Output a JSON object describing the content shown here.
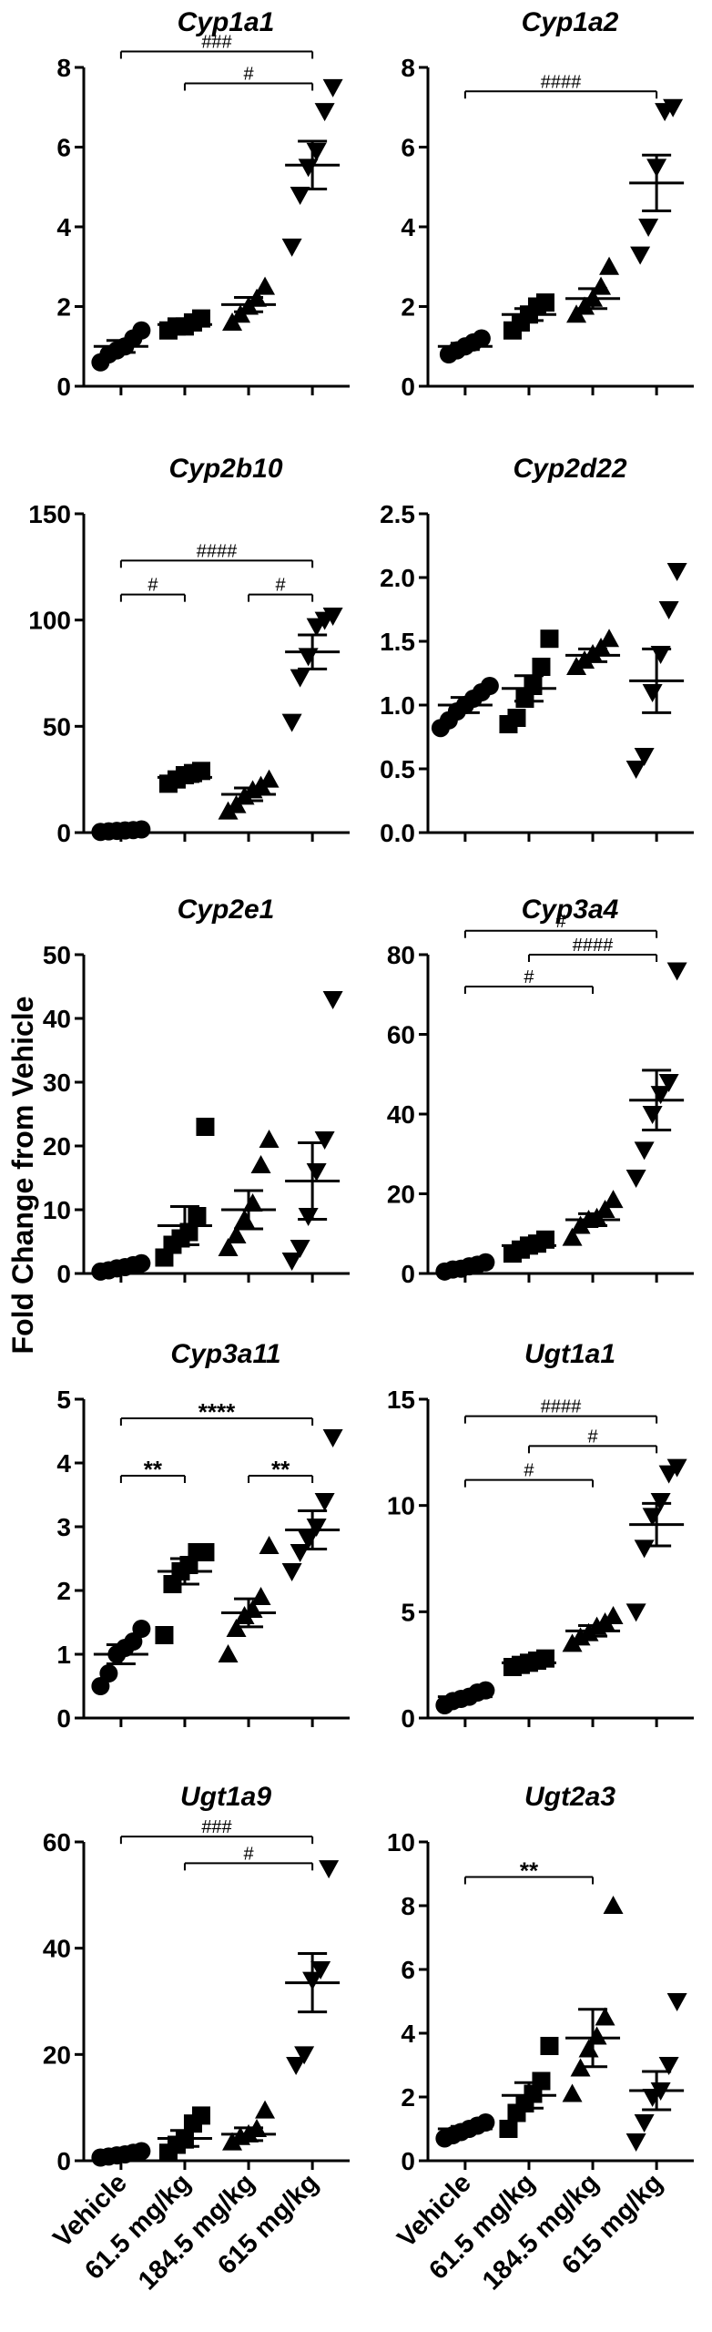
{
  "figure": {
    "y_axis_label": "Fold  Change from  Vehicle",
    "groups": [
      "Vehicle",
      "61.5 mg/kg",
      "184.5 mg/kg",
      "615 mg/kg"
    ],
    "marker_shapes": [
      "circle",
      "square",
      "triangle-up",
      "triangle-down"
    ]
  },
  "chart_data": [
    {
      "type": "scatter",
      "title": "Cyp1a1",
      "ylim": [
        0,
        8
      ],
      "yticks": [
        0,
        2,
        4,
        6,
        8
      ],
      "tick_labels": [
        "0",
        "2",
        "4",
        "6",
        "8"
      ],
      "points": [
        [
          0.6,
          0.8,
          0.9,
          1.0,
          1.2,
          1.4
        ],
        [
          1.4,
          1.5,
          1.5,
          1.6,
          1.7
        ],
        [
          1.6,
          1.8,
          2.0,
          2.2,
          2.5
        ],
        [
          3.5,
          4.8,
          5.5,
          5.9,
          6.9,
          7.5
        ]
      ],
      "means": [
        1.0,
        1.55,
        2.05,
        5.55
      ],
      "errors": [
        0.15,
        0.07,
        0.18,
        0.6
      ],
      "sig": [
        {
          "from": 0,
          "to": 3,
          "label": "###",
          "y": 8.4
        },
        {
          "from": 1,
          "to": 3,
          "label": "#",
          "y": 7.6
        }
      ]
    },
    {
      "type": "scatter",
      "title": "Cyp1a2",
      "ylim": [
        0,
        8
      ],
      "yticks": [
        0,
        2,
        4,
        6,
        8
      ],
      "tick_labels": [
        "0",
        "2",
        "4",
        "6",
        "8"
      ],
      "points": [
        [
          0.8,
          0.9,
          1.0,
          1.1,
          1.2
        ],
        [
          1.4,
          1.6,
          1.8,
          2.0,
          2.1
        ],
        [
          1.8,
          2.0,
          2.2,
          2.5,
          3.0
        ],
        [
          3.3,
          4.0,
          5.5,
          6.9,
          7.0
        ]
      ],
      "means": [
        1.0,
        1.8,
        2.2,
        5.1
      ],
      "errors": [
        0.08,
        0.15,
        0.25,
        0.7
      ],
      "sig": [
        {
          "from": 0,
          "to": 3,
          "label": "####",
          "y": 7.4
        }
      ]
    },
    {
      "type": "scatter",
      "title": "Cyp2b10",
      "ylim": [
        0,
        150
      ],
      "yticks": [
        0,
        50,
        100,
        150
      ],
      "tick_labels": [
        "0",
        "50",
        "100",
        "150"
      ],
      "points": [
        [
          0.3,
          0.6,
          0.8,
          1.0,
          1.2,
          1.5
        ],
        [
          23,
          25,
          27,
          28,
          29
        ],
        [
          10,
          13,
          17,
          20,
          22,
          25
        ],
        [
          52,
          73,
          83,
          97,
          100,
          102
        ]
      ],
      "means": [
        1.0,
        26,
        18,
        85
      ],
      "errors": [
        0.3,
        2,
        3,
        8
      ],
      "sig": [
        {
          "from": 0,
          "to": 3,
          "label": "####",
          "y": 128
        },
        {
          "from": 0,
          "to": 1,
          "label": "#",
          "y": 112
        },
        {
          "from": 2,
          "to": 3,
          "label": "#",
          "y": 112
        }
      ]
    },
    {
      "type": "scatter",
      "title": "Cyp2d22",
      "ylim": [
        0,
        2.5
      ],
      "yticks": [
        0,
        0.5,
        1.0,
        1.5,
        2.0,
        2.5
      ],
      "tick_labels": [
        "0.0",
        "0.5",
        "1.0",
        "1.5",
        "2.0",
        "2.5"
      ],
      "points": [
        [
          0.82,
          0.88,
          0.95,
          1.0,
          1.05,
          1.1,
          1.15
        ],
        [
          0.85,
          0.9,
          1.05,
          1.15,
          1.3,
          1.52
        ],
        [
          1.3,
          1.35,
          1.4,
          1.45,
          1.52
        ],
        [
          0.5,
          0.6,
          1.1,
          1.4,
          1.75,
          2.05
        ]
      ],
      "means": [
        1.0,
        1.13,
        1.39,
        1.19
      ],
      "errors": [
        0.06,
        0.1,
        0.05,
        0.25
      ],
      "sig": []
    },
    {
      "type": "scatter",
      "title": "Cyp2e1",
      "ylim": [
        0,
        50
      ],
      "yticks": [
        0,
        10,
        20,
        30,
        40,
        50
      ],
      "tick_labels": [
        "0",
        "10",
        "20",
        "30",
        "40",
        "50"
      ],
      "points": [
        [
          0.3,
          0.5,
          0.8,
          1.0,
          1.3,
          1.6
        ],
        [
          2.5,
          4.5,
          5.5,
          6.5,
          9.0,
          23.0
        ],
        [
          4.0,
          6.0,
          8.5,
          11,
          17,
          21
        ],
        [
          2,
          4,
          9,
          16,
          21,
          43
        ]
      ],
      "means": [
        1.0,
        7.5,
        10,
        14.5
      ],
      "errors": [
        0.3,
        3,
        3,
        6
      ],
      "sig": []
    },
    {
      "type": "scatter",
      "title": "Cyp3a4",
      "ylim": [
        0,
        80
      ],
      "yticks": [
        0,
        20,
        40,
        60,
        80
      ],
      "tick_labels": [
        "0",
        "20",
        "40",
        "60",
        "80"
      ],
      "points": [
        [
          0.5,
          1.0,
          1.2,
          1.8,
          2.2,
          2.8
        ],
        [
          5,
          6,
          7,
          7.5,
          8.5
        ],
        [
          9,
          12,
          13.5,
          14,
          16,
          18.5
        ],
        [
          24,
          31,
          40,
          45,
          48,
          76
        ]
      ],
      "means": [
        1.5,
        7,
        13.5,
        43.5
      ],
      "errors": [
        0.4,
        0.6,
        1.5,
        7.5
      ],
      "sig": [
        {
          "from": 0,
          "to": 3,
          "label": "#",
          "y": 86
        },
        {
          "from": 1,
          "to": 3,
          "label": "####",
          "y": 80
        },
        {
          "from": 0,
          "to": 2,
          "label": "#",
          "y": 72
        }
      ]
    },
    {
      "type": "scatter",
      "title": "Cyp3a11",
      "ylim": [
        0,
        5
      ],
      "yticks": [
        0,
        1,
        2,
        3,
        4,
        5
      ],
      "tick_labels": [
        "0",
        "1",
        "2",
        "3",
        "4",
        "5"
      ],
      "points": [
        [
          0.5,
          0.7,
          1.0,
          1.1,
          1.2,
          1.4
        ],
        [
          1.3,
          2.1,
          2.3,
          2.4,
          2.6,
          2.6
        ],
        [
          1.0,
          1.4,
          1.6,
          1.7,
          1.9,
          2.7
        ],
        [
          2.3,
          2.6,
          2.8,
          3.0,
          3.4,
          4.4
        ]
      ],
      "means": [
        1.0,
        2.3,
        1.65,
        2.95
      ],
      "errors": [
        0.15,
        0.2,
        0.22,
        0.3
      ],
      "sig": [
        {
          "from": 0,
          "to": 3,
          "label": "****",
          "y": 4.7
        },
        {
          "from": 0,
          "to": 1,
          "label": "**",
          "y": 3.8
        },
        {
          "from": 2,
          "to": 3,
          "label": "**",
          "y": 3.8
        }
      ]
    },
    {
      "type": "scatter",
      "title": "Ugt1a1",
      "ylim": [
        0,
        15
      ],
      "yticks": [
        0,
        5,
        10,
        15
      ],
      "tick_labels": [
        "0",
        "5",
        "10",
        "15"
      ],
      "points": [
        [
          0.6,
          0.8,
          0.9,
          1.0,
          1.2,
          1.3
        ],
        [
          2.4,
          2.5,
          2.6,
          2.7,
          2.8
        ],
        [
          3.5,
          3.8,
          4.0,
          4.3,
          4.5,
          4.8
        ],
        [
          5.0,
          8.0,
          9.5,
          10.2,
          11.5,
          11.8
        ]
      ],
      "means": [
        1.0,
        2.6,
        4.1,
        9.1
      ],
      "errors": [
        0.1,
        0.1,
        0.25,
        1.0
      ],
      "sig": [
        {
          "from": 0,
          "to": 3,
          "label": "####",
          "y": 14.2
        },
        {
          "from": 1,
          "to": 3,
          "label": "#",
          "y": 12.8
        },
        {
          "from": 0,
          "to": 2,
          "label": "#",
          "y": 11.2
        }
      ]
    },
    {
      "type": "scatter",
      "title": "Ugt1a9",
      "ylim": [
        0,
        60
      ],
      "yticks": [
        0,
        20,
        40,
        60
      ],
      "tick_labels": [
        "0",
        "20",
        "40",
        "60"
      ],
      "points": [
        [
          0.6,
          0.8,
          1.0,
          1.2,
          1.5,
          1.8
        ],
        [
          1.5,
          3,
          4,
          7,
          8.5
        ],
        [
          3.5,
          4.5,
          5,
          6,
          9.5
        ],
        [
          18,
          20,
          34,
          36,
          55
        ]
      ],
      "means": [
        1.0,
        4.2,
        5.0,
        33.5
      ],
      "errors": [
        0.2,
        1.5,
        1.2,
        5.5
      ],
      "sig": [
        {
          "from": 0,
          "to": 3,
          "label": "###",
          "y": 61
        },
        {
          "from": 1,
          "to": 3,
          "label": "#",
          "y": 56
        }
      ]
    },
    {
      "type": "scatter",
      "title": "Ugt2a3",
      "ylim": [
        0,
        10
      ],
      "yticks": [
        0,
        2,
        4,
        6,
        8,
        10
      ],
      "tick_labels": [
        "0",
        "2",
        "4",
        "6",
        "8",
        "10"
      ],
      "points": [
        [
          0.7,
          0.8,
          0.9,
          1.0,
          1.1,
          1.2
        ],
        [
          1.0,
          1.5,
          1.8,
          2.1,
          2.5,
          3.6
        ],
        [
          2.1,
          2.9,
          3.5,
          3.9,
          4.5,
          8.0
        ],
        [
          0.6,
          1.2,
          2.0,
          2.2,
          3.0,
          5.0
        ]
      ],
      "means": [
        1.0,
        2.05,
        3.85,
        2.2
      ],
      "errors": [
        0.08,
        0.4,
        0.9,
        0.6
      ],
      "sig": [
        {
          "from": 0,
          "to": 2,
          "label": "**",
          "y": 8.9
        }
      ]
    }
  ]
}
